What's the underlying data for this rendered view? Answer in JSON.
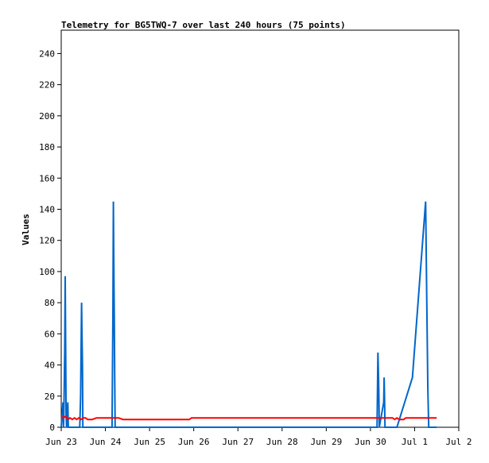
{
  "chart_data": {
    "type": "line",
    "title": "Telemetry for BG5TWQ-7 over last 240 hours (75 points)",
    "xlabel": "",
    "ylabel": "Values",
    "x_unit": "days since Jun 23 00:00",
    "xlim": [
      0,
      9
    ],
    "ylim": [
      0,
      255
    ],
    "yticks": [
      0,
      20,
      40,
      60,
      80,
      100,
      120,
      140,
      160,
      180,
      200,
      220,
      240
    ],
    "xticks": [
      {
        "x": 0,
        "label": "Jun 23"
      },
      {
        "x": 1,
        "label": "Jun 24"
      },
      {
        "x": 2,
        "label": "Jun 25"
      },
      {
        "x": 3,
        "label": "Jun 26"
      },
      {
        "x": 4,
        "label": "Jun 27"
      },
      {
        "x": 5,
        "label": "Jun 28"
      },
      {
        "x": 6,
        "label": "Jun 29"
      },
      {
        "x": 7,
        "label": "Jun 30"
      },
      {
        "x": 8,
        "label": "Jul 1"
      },
      {
        "x": 9,
        "label": "Jul 2"
      }
    ],
    "grid": false,
    "legend": "none",
    "series": [
      {
        "color": "#0066cc",
        "points": [
          [
            0.0,
            0
          ],
          [
            0.02,
            8
          ],
          [
            0.04,
            16
          ],
          [
            0.05,
            0
          ],
          [
            0.06,
            8
          ],
          [
            0.08,
            49
          ],
          [
            0.09,
            97
          ],
          [
            0.1,
            49
          ],
          [
            0.11,
            8
          ],
          [
            0.12,
            0
          ],
          [
            0.15,
            16
          ],
          [
            0.16,
            0
          ],
          [
            0.18,
            0
          ],
          [
            0.42,
            0
          ],
          [
            0.44,
            20
          ],
          [
            0.46,
            80
          ],
          [
            0.47,
            60
          ],
          [
            0.48,
            40
          ],
          [
            0.49,
            0
          ],
          [
            0.9,
            0
          ],
          [
            1.15,
            0
          ],
          [
            1.17,
            72
          ],
          [
            1.18,
            145
          ],
          [
            1.19,
            108
          ],
          [
            1.2,
            72
          ],
          [
            1.21,
            36
          ],
          [
            1.22,
            0
          ],
          [
            7.1,
            0
          ],
          [
            7.15,
            0
          ],
          [
            7.17,
            48
          ],
          [
            7.19,
            24
          ],
          [
            7.2,
            0
          ],
          [
            7.3,
            16
          ],
          [
            7.31,
            32
          ],
          [
            7.32,
            16
          ],
          [
            7.33,
            0
          ],
          [
            7.4,
            0
          ],
          [
            7.6,
            0
          ],
          [
            7.95,
            32
          ],
          [
            8.25,
            145
          ],
          [
            8.27,
            96
          ],
          [
            8.3,
            24
          ],
          [
            8.32,
            0
          ],
          [
            8.5,
            0
          ]
        ]
      },
      {
        "color": "#ff0000",
        "points": [
          [
            0.0,
            7
          ],
          [
            0.05,
            6
          ],
          [
            0.1,
            7
          ],
          [
            0.15,
            5
          ],
          [
            0.2,
            6
          ],
          [
            0.25,
            5
          ],
          [
            0.3,
            6
          ],
          [
            0.35,
            5
          ],
          [
            0.4,
            6
          ],
          [
            0.45,
            5
          ],
          [
            0.5,
            6
          ],
          [
            0.55,
            6
          ],
          [
            0.6,
            5
          ],
          [
            0.65,
            5
          ],
          [
            0.7,
            5
          ],
          [
            0.8,
            6
          ],
          [
            1.1,
            6
          ],
          [
            1.3,
            6
          ],
          [
            1.4,
            5
          ],
          [
            2.0,
            5
          ],
          [
            2.9,
            5
          ],
          [
            2.95,
            6
          ],
          [
            4.0,
            6
          ],
          [
            5.5,
            6
          ],
          [
            5.9,
            6
          ],
          [
            5.95,
            6
          ],
          [
            6.5,
            6
          ],
          [
            7.5,
            6
          ],
          [
            7.55,
            5
          ],
          [
            7.6,
            6
          ],
          [
            7.65,
            5
          ],
          [
            7.75,
            5
          ],
          [
            7.8,
            6
          ],
          [
            8.0,
            6
          ],
          [
            8.3,
            6
          ],
          [
            8.5,
            6
          ]
        ]
      }
    ]
  }
}
